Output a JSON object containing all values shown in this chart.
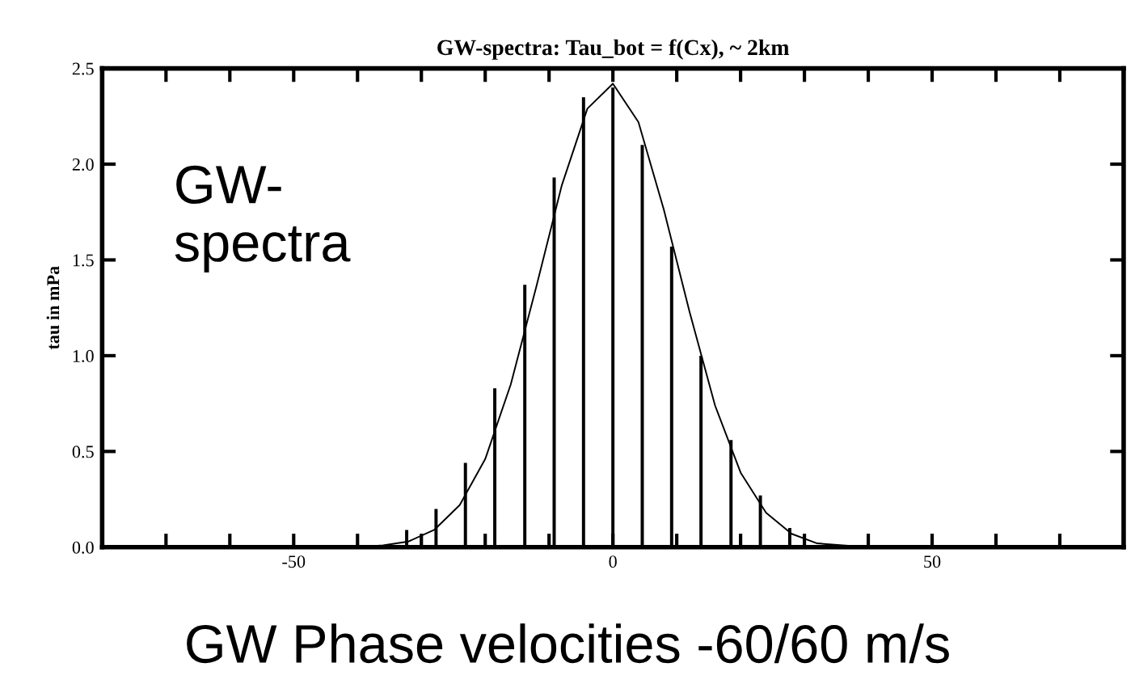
{
  "chart_data": {
    "type": "bar",
    "title": "GW-spectra: Tau_bot = f(Cx), ~ 2km",
    "ylabel": "tau in mPa",
    "annotations": [
      "GW-\nspectra",
      "GW Phase velocities -60/60 m/s"
    ],
    "series": [
      {
        "color": "#000000",
        "x": [
          -32.3,
          -27.7,
          -23.1,
          -18.5,
          -13.8,
          -9.2,
          -4.6,
          0,
          4.6,
          9.2,
          13.8,
          18.5,
          23.1,
          27.7
        ],
        "values": [
          0.09,
          0.2,
          0.44,
          0.83,
          1.37,
          1.93,
          2.35,
          2.4,
          2.1,
          1.57,
          1.0,
          0.56,
          0.27,
          0.1
        ]
      },
      {
        "type": "line",
        "color": "#000000",
        "x": [
          -44,
          -40,
          -36,
          -32,
          -28,
          -24,
          -20,
          -16,
          -12,
          -8,
          -4,
          0,
          4,
          8,
          12,
          16,
          20,
          24,
          28,
          32,
          36,
          40,
          44
        ],
        "values": [
          0.0,
          0.0,
          0.01,
          0.03,
          0.09,
          0.22,
          0.46,
          0.85,
          1.36,
          1.89,
          2.29,
          2.42,
          2.22,
          1.76,
          1.23,
          0.74,
          0.39,
          0.18,
          0.07,
          0.02,
          0.01,
          0.0,
          0.0
        ]
      }
    ],
    "xlim": [
      -80,
      80
    ],
    "ylim": [
      0,
      2.5
    ],
    "xticks": [
      {
        "value": -80,
        "label": null
      },
      {
        "value": -70,
        "label": null
      },
      {
        "value": -60,
        "label": null
      },
      -50,
      {
        "value": -40,
        "label": null
      },
      {
        "value": -30,
        "label": null
      },
      {
        "value": -20,
        "label": null
      },
      {
        "value": -10,
        "label": null
      },
      0,
      {
        "value": 10,
        "label": null
      },
      {
        "value": 20,
        "label": null
      },
      {
        "value": 30,
        "label": null
      },
      {
        "value": 40,
        "label": null
      },
      50,
      {
        "value": 60,
        "label": null
      },
      {
        "value": 70,
        "label": null
      },
      {
        "value": 80,
        "label": null
      }
    ],
    "yticks": [
      {
        "value": 0,
        "label": "0.0"
      },
      {
        "value": 0.5,
        "label": "0.5"
      },
      {
        "value": 1.0,
        "label": "1.0"
      },
      {
        "value": 1.5,
        "label": "1.5"
      },
      {
        "value": 2.0,
        "label": "2.0"
      },
      {
        "value": 2.5,
        "label": "2.5"
      }
    ],
    "grid": false,
    "legend": false
  }
}
